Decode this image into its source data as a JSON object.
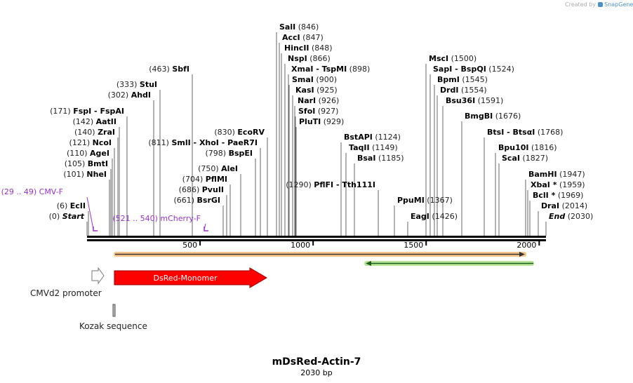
{
  "watermark": {
    "created_by": "Created by",
    "brand": "SnapGene"
  },
  "sequence": {
    "name": "mDsRed-Actin-7",
    "length_label": "2030 bp",
    "length_bp": 2030,
    "ruler_ticks": [
      {
        "bp": 500,
        "label": "500"
      },
      {
        "bp": 1000,
        "label": "1000"
      },
      {
        "bp": 1500,
        "label": "1500"
      },
      {
        "bp": 2000,
        "label": "2000"
      }
    ]
  },
  "sites": [
    {
      "name": "Start",
      "pos": "(0)",
      "bp": 0,
      "italic": true
    },
    {
      "name": "EcII",
      "pos": "(6)",
      "bp": 6
    },
    {
      "name": "NheI",
      "pos": "(101)",
      "bp": 101
    },
    {
      "name": "BmtI",
      "pos": "(105)",
      "bp": 105
    },
    {
      "name": "AgeI",
      "pos": "(110)",
      "bp": 110
    },
    {
      "name": "NcoI",
      "pos": "(121)",
      "bp": 121
    },
    {
      "name": "ZraI",
      "pos": "(140)",
      "bp": 140
    },
    {
      "name": "AatII",
      "pos": "(142)",
      "bp": 142
    },
    {
      "name": "FspI  - FspAI",
      "pos": "(171)",
      "bp": 171
    },
    {
      "name": "AhdI",
      "pos": "(302)",
      "bp": 302
    },
    {
      "name": "StuI",
      "pos": "(333)",
      "bp": 333
    },
    {
      "name": "SbfI",
      "pos": "(463)",
      "bp": 463
    },
    {
      "name": "SmlI  - XhoI  - PaeR7I",
      "pos": "(811)",
      "bp": 811
    },
    {
      "name": "BsrGI",
      "pos": "(661)",
      "bp": 661
    },
    {
      "name": "PvuII",
      "pos": "(686)",
      "bp": 686
    },
    {
      "name": "PflMI",
      "pos": "(704)",
      "bp": 704
    },
    {
      "name": "AleI",
      "pos": "(750)",
      "bp": 750
    },
    {
      "name": "BspEI",
      "pos": "(798)",
      "bp": 798
    },
    {
      "name": "EcoRV",
      "pos": "(830)",
      "bp": 830
    },
    {
      "name": "SalI",
      "pos": "(846)",
      "bp": 846
    },
    {
      "name": "AccI",
      "pos": "(847)",
      "bp": 847
    },
    {
      "name": "HincII",
      "pos": "(848)",
      "bp": 848
    },
    {
      "name": "NspI",
      "pos": "(866)",
      "bp": 866
    },
    {
      "name": "XmaI  - TspMI",
      "pos": "(898)",
      "bp": 898
    },
    {
      "name": "SmaI",
      "pos": "(900)",
      "bp": 900
    },
    {
      "name": "KasI",
      "pos": "(925)",
      "bp": 925
    },
    {
      "name": "NarI",
      "pos": "(926)",
      "bp": 926
    },
    {
      "name": "SfoI",
      "pos": "(927)",
      "bp": 927
    },
    {
      "name": "PluTI",
      "pos": "(929)",
      "bp": 929
    },
    {
      "name": "BstAPI",
      "pos": "(1124)",
      "bp": 1124
    },
    {
      "name": "TaqII",
      "pos": "(1149)",
      "bp": 1149
    },
    {
      "name": "BsaI",
      "pos": "(1185)",
      "bp": 1185
    },
    {
      "name": "PflFI  - Tth111I",
      "pos": "(1290)",
      "bp": 1290
    },
    {
      "name": "PpuMI",
      "pos": "(1367)",
      "bp": 1367
    },
    {
      "name": "EagI",
      "pos": "(1426)",
      "bp": 1426
    },
    {
      "name": "MscI",
      "pos": "(1500)",
      "bp": 1500
    },
    {
      "name": "SapI  - BspQI",
      "pos": "(1524)",
      "bp": 1524
    },
    {
      "name": "BpmI",
      "pos": "(1545)",
      "bp": 1545
    },
    {
      "name": "DrdI",
      "pos": "(1554)",
      "bp": 1554
    },
    {
      "name": "Bsu36I",
      "pos": "(1591)",
      "bp": 1591
    },
    {
      "name": "BmgBI",
      "pos": "(1676)",
      "bp": 1676
    },
    {
      "name": "BtsI  - BtsαI",
      "pos": "(1768)",
      "bp": 1768
    },
    {
      "name": "Bpu10I",
      "pos": "(1816)",
      "bp": 1816
    },
    {
      "name": "ScaI",
      "pos": "(1827)",
      "bp": 1827
    },
    {
      "name": "BamHI",
      "pos": "(1947)",
      "bp": 1947
    },
    {
      "name": "XbaI *",
      "pos": "(1959)",
      "bp": 1959
    },
    {
      "name": "BclI *",
      "pos": "(1969)",
      "bp": 1969
    },
    {
      "name": "DraI",
      "pos": "(2014)",
      "bp": 2014
    },
    {
      "name": "End",
      "pos": "(2030)",
      "bp": 2030,
      "italic": true
    }
  ],
  "primers": [
    {
      "name": "CMV-F",
      "range": "(29 .. 49)",
      "start_bp": 29,
      "end_bp": 49
    },
    {
      "name": "mCherry-F",
      "range": "(521 .. 540)",
      "start_bp": 521,
      "end_bp": 540
    }
  ],
  "features": [
    {
      "name": "CMVd2 promoter",
      "kind": "promoter",
      "color": "#ffffff"
    },
    {
      "name": "DsRed-Monomer",
      "kind": "cds",
      "color": "#ff0000"
    },
    {
      "name": "Kozak sequence",
      "kind": "misc",
      "color": "#bbbbbb"
    }
  ],
  "colors": {
    "backbone": "#000000",
    "orange_bar": "#f9c48a",
    "green_bar": "#b9e59a",
    "primer": "#9933cc",
    "cds": "#ff0000",
    "feature_label": "#ffffff"
  }
}
